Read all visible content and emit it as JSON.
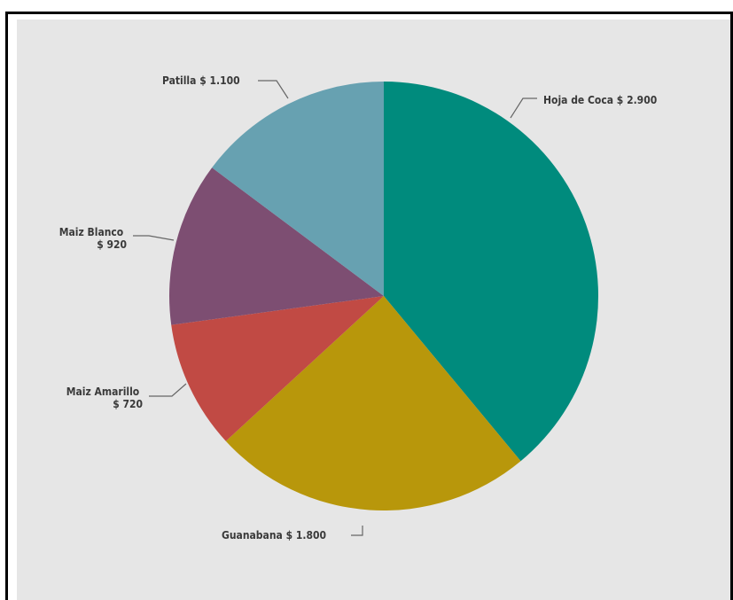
{
  "chart_data": {
    "type": "pie",
    "title": "",
    "slices": [
      {
        "label": "Hoja de Coca",
        "value": 2900,
        "value_label": "$ 2.900",
        "color": "#008b7d"
      },
      {
        "label": "Guanabana",
        "value": 1800,
        "value_label": "$ 1.800",
        "color": "#b8970b"
      },
      {
        "label": "Maiz Amarillo",
        "value": 720,
        "value_label": "$ 720",
        "color": "#c14a44"
      },
      {
        "label": "Maiz Blanco",
        "value": 920,
        "value_label": "$ 920",
        "color": "#7d4e72"
      },
      {
        "label": "Patilla",
        "value": 1100,
        "value_label": "$ 1.100",
        "color": "#67a1b1"
      }
    ],
    "legend": "none",
    "data_labels": "outside"
  },
  "colors": {
    "background": "#e6e6e6",
    "frame": "#000000"
  }
}
